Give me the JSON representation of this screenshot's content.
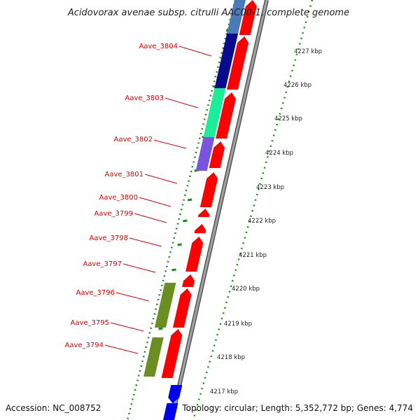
{
  "title": "Acidovorax avenae subsp. citrulli AAC00-1, complete genome",
  "footer": {
    "accession": "Accession: NC_008752",
    "topology": "Topology: circular; Length: 5,352,772 bp; Genes: 4,774"
  },
  "colors": {
    "forward_gene": "#ff0000",
    "backbone": "#888888",
    "gc_ticks": "#1a8c1a",
    "label": "#e00000",
    "feature_navy": "#0a0a8c",
    "feature_green": "#1aee99",
    "feature_purple": "#7755dd",
    "feature_olive": "#6b8e23",
    "feature_blue": "#0000ee",
    "feature_steelblue": "#4a7ab8"
  },
  "scale_ticks": [
    {
      "label": "4227 kbp"
    },
    {
      "label": "4226 kbp"
    },
    {
      "label": "4225 kbp"
    },
    {
      "label": "4224 kbp"
    },
    {
      "label": "4223 kbp"
    },
    {
      "label": "4222 kbp"
    },
    {
      "label": "4221 kbp"
    },
    {
      "label": "4220 kbp"
    },
    {
      "label": "4219 kbp"
    },
    {
      "label": "4218 kbp"
    },
    {
      "label": "4217 kbp"
    }
  ],
  "gene_labels": [
    {
      "name": "Aave_3804"
    },
    {
      "name": "Aave_3803"
    },
    {
      "name": "Aave_3802"
    },
    {
      "name": "Aave_3801"
    },
    {
      "name": "Aave_3800"
    },
    {
      "name": "Aave_3799"
    },
    {
      "name": "Aave_3798"
    },
    {
      "name": "Aave_3797"
    },
    {
      "name": "Aave_3796"
    },
    {
      "name": "Aave_3795"
    },
    {
      "name": "Aave_3794"
    }
  ]
}
